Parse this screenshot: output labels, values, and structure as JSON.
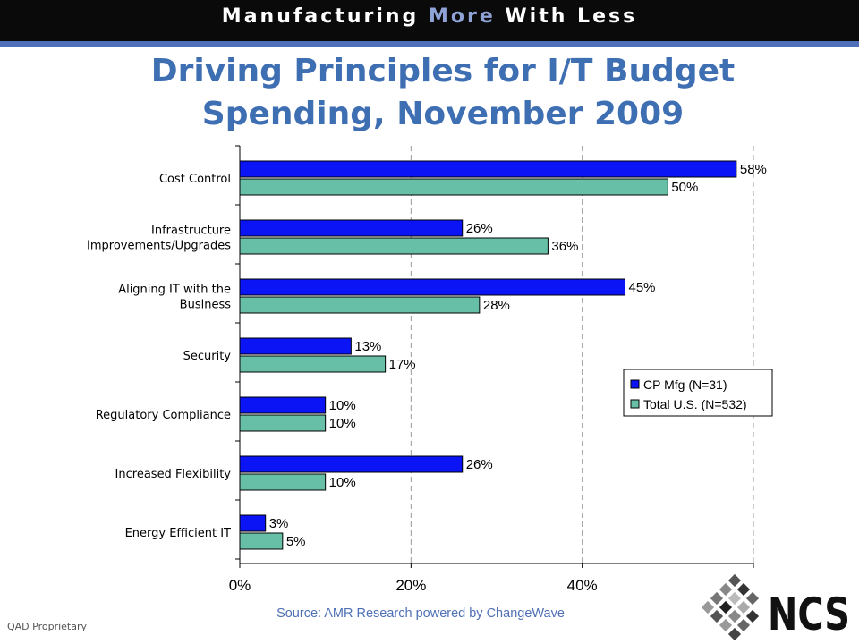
{
  "header": {
    "banner_part1": "Manufacturing ",
    "banner_accent": "More",
    "banner_part2": " With Less",
    "banner_accent_color": "#8fa3d6"
  },
  "title_line1": "Driving Principles for I/T Budget",
  "title_line2": "Spending, November 2009",
  "source": "Source: AMR Research powered by ChangeWave",
  "footer": "QAD Proprietary",
  "logo_text": "NCS",
  "chart_data": {
    "type": "bar",
    "orientation": "horizontal",
    "categories": [
      "Cost Control",
      "Infrastructure Improvements/Upgrades",
      "Aligning IT with the Business",
      "Security",
      "Regulatory Compliance",
      "Increased Flexibility",
      "Energy Efficient IT"
    ],
    "category_label_lines": [
      [
        "Cost Control"
      ],
      [
        "Infrastructure",
        "Improvements/Upgrades"
      ],
      [
        "Aligning IT with the",
        "Business"
      ],
      [
        "Security"
      ],
      [
        "Regulatory Compliance"
      ],
      [
        "Increased Flexibility"
      ],
      [
        "Energy Efficient IT"
      ]
    ],
    "series": [
      {
        "name": "CP Mfg (N=31)",
        "values": [
          58,
          26,
          45,
          13,
          10,
          26,
          3
        ],
        "color": "#0a14f5"
      },
      {
        "name": "Total U.S. (N=532)",
        "values": [
          50,
          36,
          28,
          17,
          10,
          10,
          5
        ],
        "color": "#66bfa6"
      }
    ],
    "value_suffix": "%",
    "xlim": [
      0,
      60
    ],
    "x_ticks": [
      0,
      20,
      40,
      60
    ],
    "x_tick_labels": [
      "0%",
      "20%",
      "40%",
      ""
    ],
    "grid": true,
    "legend_position": "right"
  }
}
